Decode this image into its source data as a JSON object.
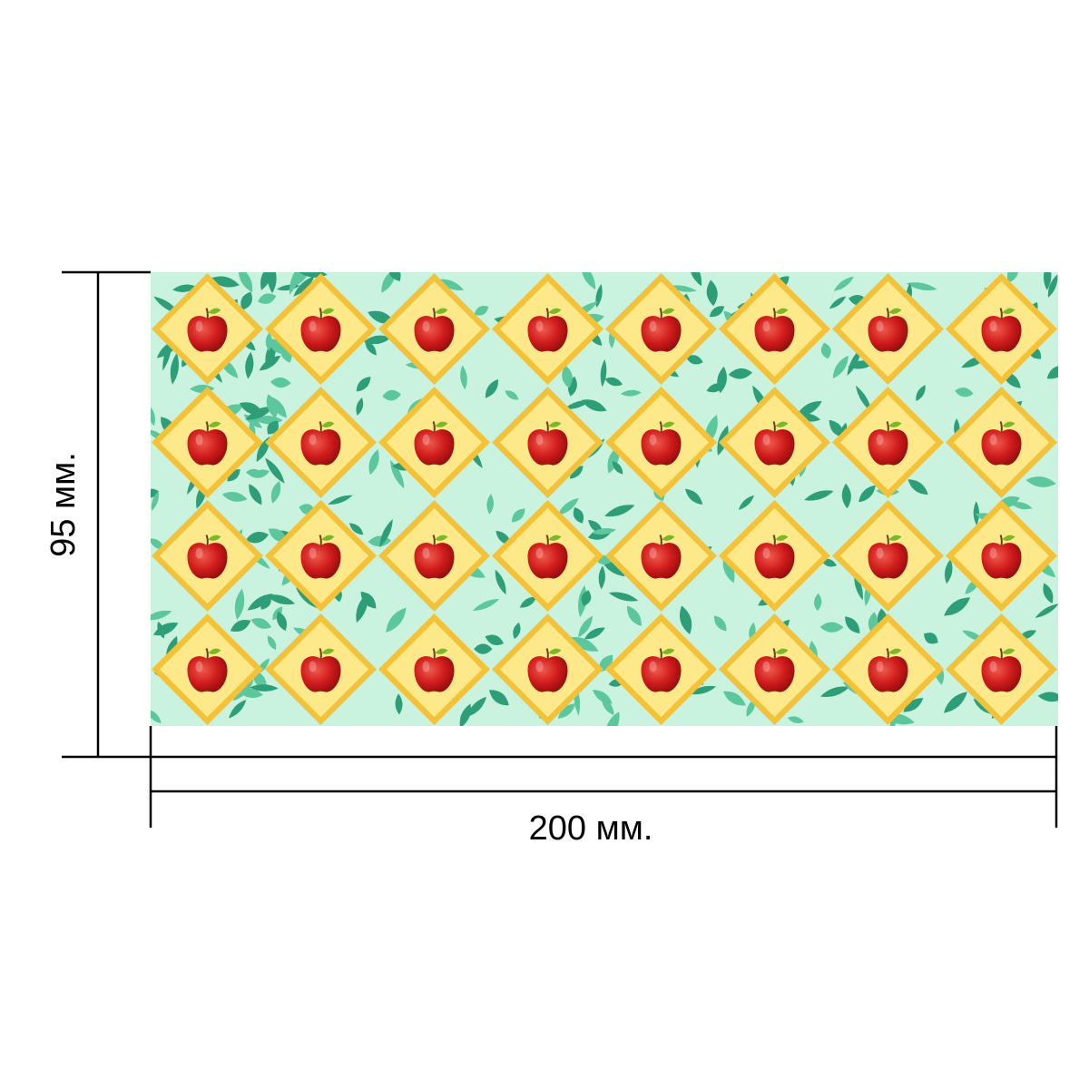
{
  "dimensions": {
    "height_label": "95 мм.",
    "width_label": "200 мм."
  },
  "pattern": {
    "rows": 4,
    "columns": 8,
    "motif": "apple-icon",
    "background_motif": "leaf-icon",
    "colors": {
      "background": "#c9f2df",
      "leaf_dark": "#2e9e78",
      "leaf_light": "#5cc79d",
      "diamond_fill": "#fde98a",
      "diamond_border": "#f2c23a",
      "apple": "#cf1b1b",
      "apple_highlight": "#ee5a4e",
      "stem": "#6b3f1d",
      "apple_leaf": "#7ab828"
    }
  },
  "lines": {
    "color": "#000000"
  }
}
